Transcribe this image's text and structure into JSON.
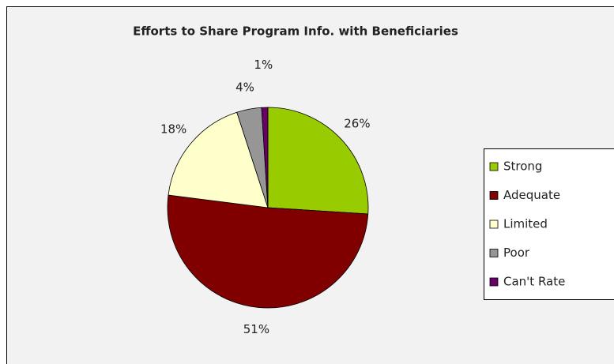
{
  "chart_data": {
    "type": "pie",
    "title": "Efforts to Share Program Info. with Beneficiaries",
    "categories": [
      "Strong",
      "Adequate",
      "Limited",
      "Poor",
      "Can't Rate"
    ],
    "values": [
      26,
      51,
      18,
      4,
      1
    ],
    "value_labels": [
      "26%",
      "51%",
      "18%",
      "4%",
      "1%"
    ],
    "colors": [
      "#99cc00",
      "#800000",
      "#ffffcc",
      "#969696",
      "#660066"
    ],
    "legend": "right"
  }
}
